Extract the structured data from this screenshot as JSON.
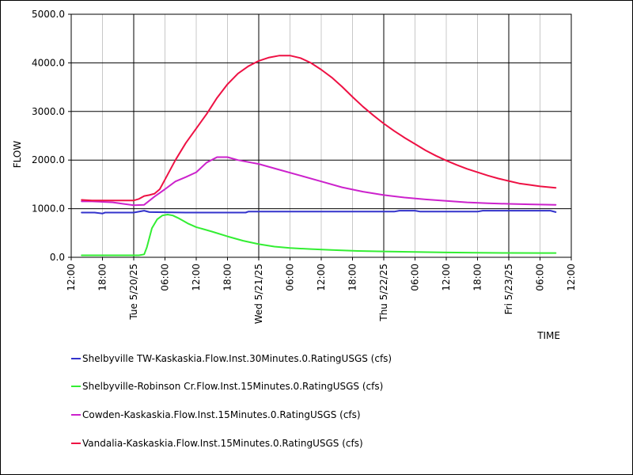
{
  "chart_data": {
    "type": "line",
    "title": "",
    "xlabel": "TIME",
    "ylabel": "FLOW",
    "ylim": [
      0,
      5000
    ],
    "y_ticks": [
      "0.0",
      "1000.0",
      "2000.0",
      "3000.0",
      "4000.0",
      "5000.0"
    ],
    "y_tick_values": [
      0,
      1000,
      2000,
      3000,
      4000,
      5000
    ],
    "x_range_hours": [
      0,
      96
    ],
    "x_ticks": [
      {
        "h": 0,
        "label": "12:00",
        "major": false
      },
      {
        "h": 6,
        "label": "18:00",
        "major": false
      },
      {
        "h": 12,
        "label": "Tue 5/20/25",
        "major": true
      },
      {
        "h": 18,
        "label": "06:00",
        "major": false
      },
      {
        "h": 24,
        "label": "12:00",
        "major": false
      },
      {
        "h": 30,
        "label": "18:00",
        "major": false
      },
      {
        "h": 36,
        "label": "Wed 5/21/25",
        "major": true
      },
      {
        "h": 42,
        "label": "06:00",
        "major": false
      },
      {
        "h": 48,
        "label": "12:00",
        "major": false
      },
      {
        "h": 54,
        "label": "18:00",
        "major": false
      },
      {
        "h": 60,
        "label": "Thu 5/22/25",
        "major": true
      },
      {
        "h": 66,
        "label": "06:00",
        "major": false
      },
      {
        "h": 72,
        "label": "12:00",
        "major": false
      },
      {
        "h": 78,
        "label": "18:00",
        "major": false
      },
      {
        "h": 84,
        "label": "Fri 5/23/25",
        "major": true
      },
      {
        "h": 90,
        "label": "06:00",
        "major": false
      },
      {
        "h": 96,
        "label": "12:00",
        "major": false
      }
    ],
    "grid": true,
    "legend_position": "bottom",
    "series": [
      {
        "name": "Shelbyville TW-Kaskaskia.Flow.Inst.30Minutes.0.RatingUSGS (cfs)",
        "color": "#3333cc",
        "x": [
          2,
          4.5,
          6,
          6.5,
          12,
          14,
          15,
          22,
          33.5,
          34,
          62,
          63,
          66,
          67,
          78,
          79,
          92,
          93
        ],
        "y": [
          920,
          920,
          900,
          920,
          920,
          960,
          930,
          920,
          920,
          940,
          940,
          960,
          960,
          940,
          940,
          960,
          960,
          930
        ]
      },
      {
        "name": "Shelbyville-Robinson Cr.Flow.Inst.15Minutes.0.RatingUSGS (cfs)",
        "color": "#33ee33",
        "x": [
          2,
          5,
          10,
          13,
          14,
          14.5,
          15.5,
          16.5,
          17.5,
          18.5,
          19.5,
          20.5,
          21.5,
          22.5,
          24,
          27,
          30,
          33,
          36,
          39,
          42,
          46,
          50,
          55,
          60,
          66,
          72,
          78,
          84,
          90,
          93
        ],
        "y": [
          40,
          40,
          40,
          40,
          60,
          200,
          600,
          780,
          860,
          880,
          860,
          810,
          750,
          690,
          620,
          530,
          430,
          340,
          270,
          220,
          190,
          170,
          150,
          130,
          120,
          110,
          100,
          95,
          90,
          88,
          88
        ]
      },
      {
        "name": "Cowden-Kaskaskia.Flow.Inst.15Minutes.0.RatingUSGS (cfs)",
        "color": "#cc22cc",
        "x": [
          2,
          4,
          8,
          10,
          12,
          14,
          16,
          18,
          20,
          22,
          24,
          26,
          28,
          30,
          32,
          34,
          36,
          40,
          44,
          48,
          52,
          56,
          60,
          64,
          68,
          72,
          76,
          80,
          84,
          88,
          93
        ],
        "y": [
          1150,
          1150,
          1130,
          1100,
          1070,
          1080,
          1250,
          1400,
          1560,
          1650,
          1750,
          1950,
          2060,
          2060,
          2000,
          1960,
          1920,
          1800,
          1680,
          1560,
          1440,
          1350,
          1280,
          1230,
          1190,
          1160,
          1130,
          1110,
          1100,
          1090,
          1080
        ]
      },
      {
        "name": "Vandalia-Kaskaskia.Flow.Inst.15Minutes.0.RatingUSGS (cfs)",
        "color": "#ee1144",
        "x": [
          2,
          4,
          8,
          12,
          13,
          14,
          15,
          16,
          17,
          18,
          20,
          22,
          24,
          26,
          28,
          30,
          32,
          34,
          36,
          38,
          40,
          42,
          44,
          46,
          48,
          50,
          52,
          54,
          56,
          58,
          60,
          62,
          64,
          66,
          68,
          70,
          72,
          74,
          76,
          78,
          80,
          82,
          84,
          86,
          88,
          90,
          93
        ],
        "y": [
          1180,
          1170,
          1170,
          1170,
          1200,
          1260,
          1280,
          1310,
          1400,
          1600,
          2000,
          2350,
          2650,
          2950,
          3280,
          3560,
          3780,
          3930,
          4040,
          4110,
          4150,
          4150,
          4100,
          4000,
          3860,
          3700,
          3510,
          3300,
          3100,
          2920,
          2750,
          2600,
          2460,
          2330,
          2200,
          2090,
          1990,
          1900,
          1820,
          1750,
          1680,
          1620,
          1570,
          1520,
          1490,
          1460,
          1430
        ]
      }
    ]
  }
}
